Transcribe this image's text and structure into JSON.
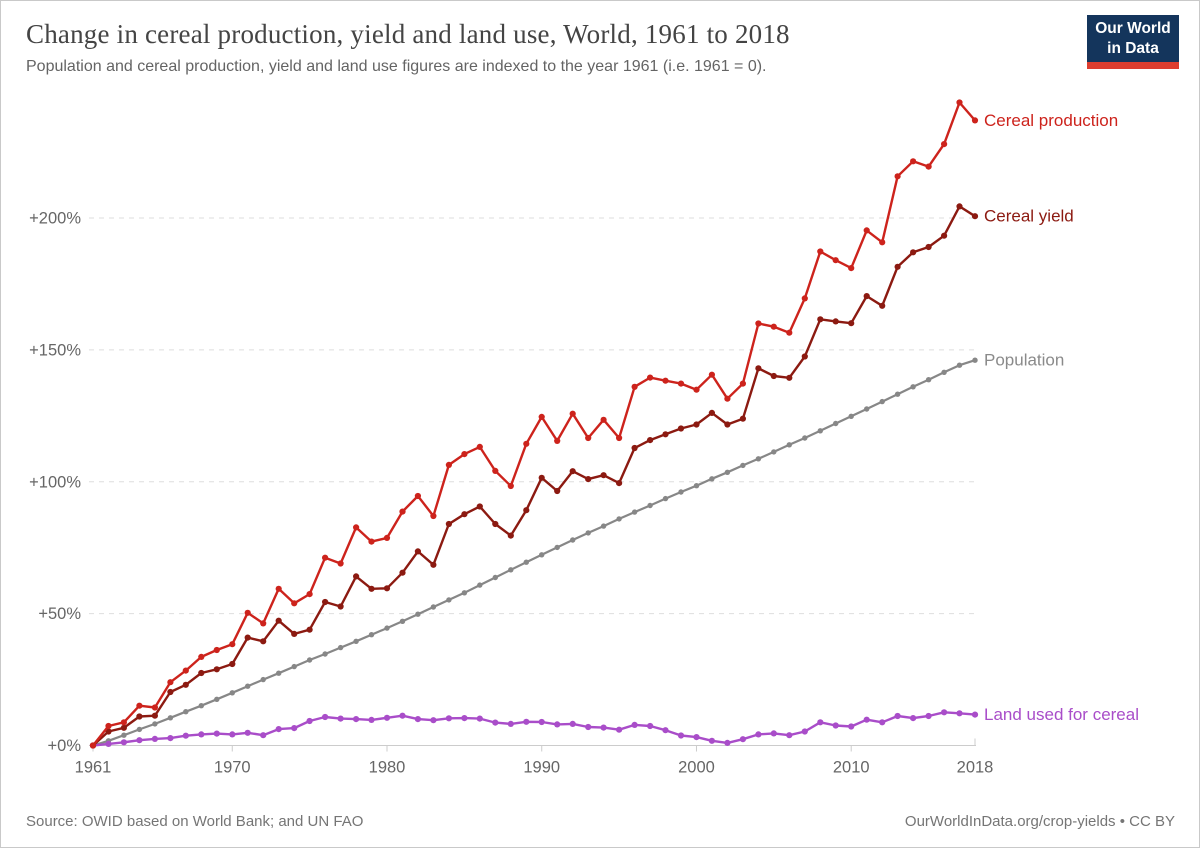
{
  "header": {
    "title": "Change in cereal production, yield and land use, World, 1961 to 2018",
    "subtitle": "Population and cereal production, yield and land use figures are indexed to the year 1961 (i.e. 1961 = 0).",
    "logo": {
      "line1": "Our World",
      "line2": "in Data",
      "bg_color": "#14355c",
      "bar_color": "#dd3d2f"
    }
  },
  "footer": {
    "source": "Source: OWID based on World Bank; and UN FAO",
    "link": "OurWorldInData.org/crop-yields • CC BY"
  },
  "chart_data": {
    "type": "line",
    "title": "Change in cereal production, yield and land use, World, 1961 to 2018",
    "subtitle": "Population and cereal production, yield and land use figures are indexed to the year 1961 (i.e. 1961 = 0).",
    "xlabel": "",
    "ylabel": "",
    "xlim": [
      1961,
      2018
    ],
    "ylim": [
      0,
      200
    ],
    "grid": true,
    "legend_position": "line-end-labels",
    "axis_color": "#cccccc",
    "gridline_color": "#dedede",
    "tick_label_color": "#666666",
    "yticks": [
      {
        "value": 0,
        "label": "+0%"
      },
      {
        "value": 50,
        "label": "+50%"
      },
      {
        "value": 100,
        "label": "+100%"
      },
      {
        "value": 150,
        "label": "+150%"
      },
      {
        "value": 200,
        "label": "+200%"
      }
    ],
    "xticks": [
      1961,
      1970,
      1980,
      1990,
      2000,
      2010,
      2018
    ],
    "x": [
      1961,
      1962,
      1963,
      1964,
      1965,
      1966,
      1967,
      1968,
      1969,
      1970,
      1971,
      1972,
      1973,
      1974,
      1975,
      1976,
      1977,
      1978,
      1979,
      1980,
      1981,
      1982,
      1983,
      1984,
      1985,
      1986,
      1987,
      1988,
      1989,
      1990,
      1991,
      1992,
      1993,
      1994,
      1995,
      1996,
      1997,
      1998,
      1999,
      2000,
      2001,
      2002,
      2003,
      2004,
      2005,
      2006,
      2007,
      2008,
      2009,
      2010,
      2011,
      2012,
      2013,
      2014,
      2015,
      2016,
      2017,
      2018
    ],
    "unit": "% change relative to 1961",
    "series": [
      {
        "id": "population",
        "name": "Population",
        "color": "#878787",
        "label_color": "#8a8a8a",
        "marker_radius": 2.7,
        "line_width": 2.2,
        "values": [
          0,
          1.8,
          3.9,
          6.1,
          8.2,
          10.5,
          12.8,
          15.1,
          17.5,
          20,
          22.5,
          25,
          27.4,
          29.9,
          32.4,
          34.7,
          37.1,
          39.5,
          42,
          44.5,
          47.1,
          49.8,
          52.5,
          55.2,
          57.9,
          60.8,
          63.7,
          66.6,
          69.5,
          72.3,
          75.1,
          77.9,
          80.6,
          83.2,
          85.9,
          88.5,
          91,
          93.6,
          96.1,
          98.5,
          101.1,
          103.6,
          106.2,
          108.7,
          111.3,
          114,
          116.6,
          119.3,
          122.1,
          124.8,
          127.6,
          130.4,
          133.2,
          136,
          138.7,
          141.5,
          144.2,
          146.1
        ]
      },
      {
        "id": "land-used-for-cereal",
        "name": "Land used for cereal",
        "color": "#a94dc9",
        "label_color": "#a94dc9",
        "marker_radius": 3.1,
        "line_width": 2.4,
        "values": [
          0,
          0.6,
          1.2,
          2,
          2.5,
          2.8,
          3.7,
          4.2,
          4.5,
          4.2,
          4.8,
          3.9,
          6.2,
          6.6,
          9.3,
          10.8,
          10.2,
          10,
          9.7,
          10.5,
          11.3,
          10,
          9.6,
          10.3,
          10.4,
          10.2,
          8.7,
          8.2,
          9,
          8.9,
          8,
          8.2,
          7,
          6.8,
          6,
          7.8,
          7.4,
          5.8,
          3.8,
          3.2,
          1.8,
          1,
          2.4,
          4.2,
          4.6,
          3.9,
          5.3,
          8.8,
          7.6,
          7.2,
          9.8,
          8.8,
          11.2,
          10.4,
          11.2,
          12.6,
          12.2,
          11.7
        ]
      },
      {
        "id": "cereal-yield",
        "name": "Cereal yield",
        "color": "#8c1a11",
        "label_color": "#8c1a11",
        "marker_radius": 3.1,
        "line_width": 2.4,
        "values": [
          0,
          5.3,
          6.7,
          11,
          11.3,
          20.3,
          23,
          27.5,
          28.9,
          30.9,
          40.9,
          39.5,
          47.3,
          42.3,
          43.9,
          54.4,
          52.7,
          64.1,
          59.4,
          59.6,
          65.5,
          73.6,
          68.5,
          84,
          87.7,
          90.6,
          84,
          79.6,
          89.2,
          101.5,
          96.5,
          104,
          101,
          102.5,
          99.5,
          112.8,
          115.8,
          118,
          120.2,
          121.7,
          126.1,
          121.7,
          123.9,
          143,
          140.1,
          139.4,
          147.5,
          161.6,
          160.8,
          160.1,
          170.4,
          166.7,
          181.5,
          187,
          189,
          193.3,
          204.4,
          200.7
        ]
      },
      {
        "id": "cereal-production",
        "name": "Cereal production",
        "color": "#cd231c",
        "label_color": "#cd231c",
        "marker_radius": 3.1,
        "line_width": 2.4,
        "values": [
          0,
          7.4,
          8.8,
          15.1,
          14.4,
          24,
          28.4,
          33.6,
          36.2,
          38.4,
          50.3,
          46.3,
          59.4,
          53.9,
          57.4,
          71.2,
          69,
          82.7,
          77.3,
          78.7,
          88.7,
          94.6,
          87,
          106.4,
          110.5,
          113.2,
          104.1,
          98.4,
          114.4,
          124.6,
          115.5,
          125.8,
          116.6,
          123.5,
          116.6,
          136,
          139.5,
          138.3,
          137.2,
          134.9,
          140.6,
          131.5,
          137.2,
          160,
          158.8,
          156.5,
          169.5,
          187.3,
          184,
          181,
          195.3,
          190.8,
          215.8,
          221.5,
          219.5,
          228,
          243.8,
          237
        ]
      }
    ]
  }
}
